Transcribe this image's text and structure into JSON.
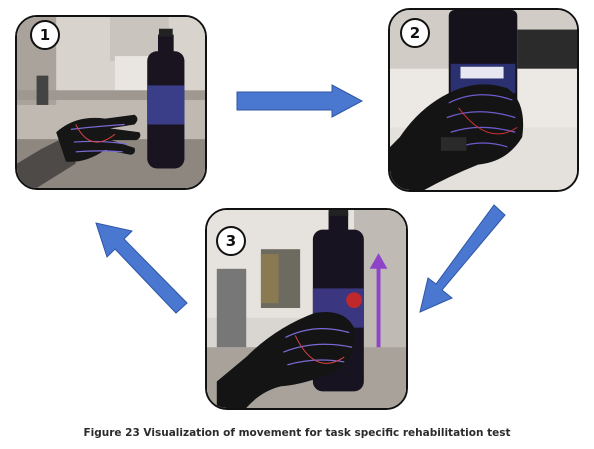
{
  "steps": [
    {
      "number": "1"
    },
    {
      "number": "2"
    },
    {
      "number": "3"
    }
  ],
  "caption": "Figure 23 Visualization of movement for task specific rehabilitation test",
  "colors": {
    "arrow_fill": "#4a78d0",
    "arrow_stroke": "#2f56a6",
    "panel_border": "#111111",
    "vertical_arrow": "#8e44c9"
  },
  "icons": [
    "flow-arrow-right",
    "flow-arrow-down-left",
    "flow-arrow-up-left",
    "upward-motion-arrow"
  ]
}
